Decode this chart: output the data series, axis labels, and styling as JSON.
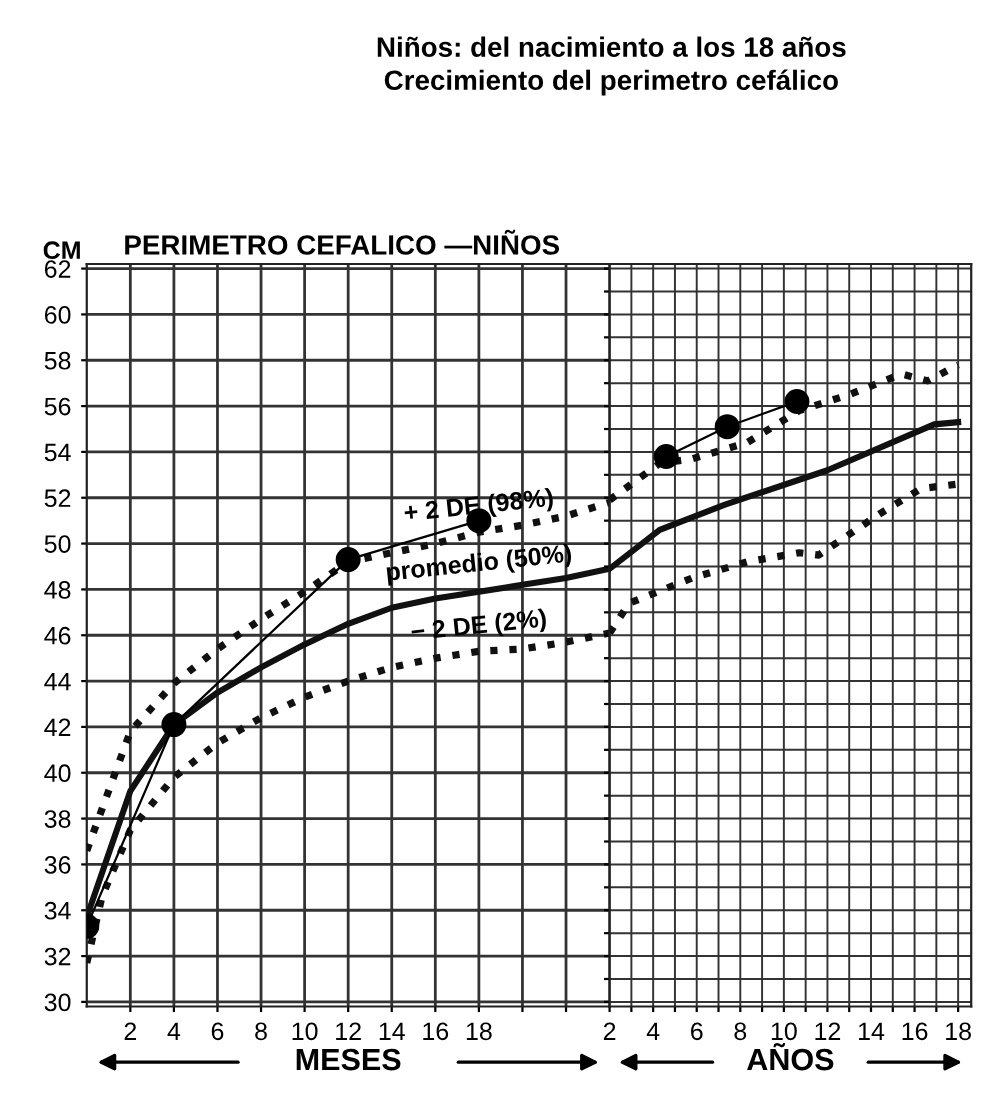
{
  "chart_data": [
    {
      "type": "line",
      "title": "Niños: del nacimiento a los 18 años",
      "subtitle": "Crecimiento del perimetro cefálico",
      "ylabel": "CM",
      "xlabel": "MESES",
      "annotations": [
        "PERIMETRO CEFALICO —NIÑOS"
      ],
      "xlim": [
        0,
        24
      ],
      "xticks": [
        2,
        4,
        6,
        8,
        10,
        12,
        14,
        16,
        18,
        {
          "value": 20,
          "label": null
        },
        {
          "value": 22,
          "label": null
        }
      ],
      "ylim": [
        29.8,
        62.2
      ],
      "yticks": [
        30,
        32,
        34,
        36,
        38,
        40,
        42,
        44,
        46,
        48,
        50,
        52,
        54,
        56,
        58,
        60,
        62
      ],
      "grid": true,
      "series": [
        {
          "name": "+ 2 DE (98%)",
          "color": "#111111",
          "line_style": "dotted",
          "x": [
            0,
            2,
            4,
            6,
            8,
            10,
            12,
            14,
            16,
            18,
            20,
            22,
            24
          ],
          "values": [
            36.6,
            41.8,
            43.9,
            45.4,
            46.7,
            47.9,
            49.2,
            49.6,
            50.0,
            50.5,
            50.8,
            51.2,
            51.8
          ]
        },
        {
          "name": "promedio (50%)",
          "color": "#111111",
          "line_style": "solid",
          "x": [
            0,
            2,
            4,
            6,
            8,
            10,
            12,
            14,
            16,
            18,
            20,
            22,
            24
          ],
          "values": [
            33.7,
            39.2,
            42.1,
            43.5,
            44.6,
            45.6,
            46.5,
            47.2,
            47.6,
            47.9,
            48.2,
            48.5,
            48.9
          ]
        },
        {
          "name": "− 2 DE (2%)",
          "color": "#111111",
          "line_style": "dotted",
          "x": [
            0,
            0.7,
            2,
            4,
            6,
            8,
            10,
            12,
            14,
            16,
            18,
            20,
            22,
            24
          ],
          "values": [
            31.7,
            34.6,
            37.5,
            39.8,
            41.3,
            42.4,
            43.3,
            44.0,
            44.6,
            45.0,
            45.3,
            45.4,
            45.7,
            46.1
          ]
        },
        {
          "color": "#000000",
          "line_style": "solid",
          "marker": "circle",
          "x": [
            0,
            4,
            12,
            18
          ],
          "values": [
            33.3,
            42.1,
            49.3,
            51.0
          ]
        }
      ]
    },
    {
      "type": "line",
      "xlabel": "AÑOS",
      "xlim": [
        2,
        18.6
      ],
      "xticks": [
        2,
        {
          "value": 3,
          "label": null
        },
        4,
        {
          "value": 5,
          "label": null
        },
        6,
        {
          "value": 7,
          "label": null
        },
        8,
        {
          "value": 9,
          "label": null
        },
        10,
        {
          "value": 11,
          "label": null
        },
        12,
        {
          "value": 13,
          "label": null
        },
        14,
        {
          "value": 15,
          "label": null
        },
        16,
        {
          "value": 17,
          "label": null
        },
        18
      ],
      "ylim": [
        29.8,
        62.2
      ],
      "yticks": [
        {
          "value": 30,
          "label": null
        },
        {
          "value": 31,
          "label": null
        },
        {
          "value": 32,
          "label": null
        },
        {
          "value": 33,
          "label": null
        },
        {
          "value": 34,
          "label": null
        },
        {
          "value": 35,
          "label": null
        },
        {
          "value": 36,
          "label": null
        },
        {
          "value": 37,
          "label": null
        },
        {
          "value": 38,
          "label": null
        },
        {
          "value": 39,
          "label": null
        },
        {
          "value": 40,
          "label": null
        },
        {
          "value": 41,
          "label": null
        },
        {
          "value": 42,
          "label": null
        },
        {
          "value": 43,
          "label": null
        },
        {
          "value": 44,
          "label": null
        },
        {
          "value": 45,
          "label": null
        },
        {
          "value": 46,
          "label": null
        },
        {
          "value": 47,
          "label": null
        },
        {
          "value": 48,
          "label": null
        },
        {
          "value": 49,
          "label": null
        },
        {
          "value": 50,
          "label": null
        },
        {
          "value": 51,
          "label": null
        },
        {
          "value": 52,
          "label": null
        },
        {
          "value": 53,
          "label": null
        },
        {
          "value": 54,
          "label": null
        },
        {
          "value": 55,
          "label": null
        },
        {
          "value": 56,
          "label": null
        },
        {
          "value": 57,
          "label": null
        },
        {
          "value": 58,
          "label": null
        },
        {
          "value": 59,
          "label": null
        },
        {
          "value": 60,
          "label": null
        },
        {
          "value": 61,
          "label": null
        },
        {
          "value": 62,
          "label": null
        }
      ],
      "tick_labels": "x",
      "grid": true,
      "series": [
        {
          "color": "#111111",
          "line_style": "dotted",
          "x": [
            2,
            4.3,
            5.8,
            8.3,
            10.7,
            13,
            15.4,
            16.6,
            18
          ],
          "values": [
            51.9,
            53.5,
            53.7,
            54.4,
            55.8,
            56.5,
            57.4,
            57.1,
            57.8
          ]
        },
        {
          "color": "#111111",
          "line_style": "solid",
          "x": [
            2,
            4.3,
            7.3,
            12,
            16.9,
            18
          ],
          "values": [
            48.9,
            50.6,
            51.7,
            53.2,
            55.2,
            55.3
          ]
        },
        {
          "color": "#111111",
          "line_style": "dotted",
          "x": [
            2,
            2.9,
            5.8,
            8.3,
            10.7,
            11.6,
            14.4,
            16.3,
            18
          ],
          "values": [
            46.1,
            47.4,
            48.5,
            49.2,
            49.6,
            49.5,
            51.3,
            52.4,
            52.6
          ]
        },
        {
          "color": "#000000",
          "line_style": "solid",
          "marker": "circle",
          "x": [
            4.6,
            7.4,
            10.6
          ],
          "values": [
            53.8,
            55.1,
            56.2
          ]
        }
      ]
    }
  ]
}
